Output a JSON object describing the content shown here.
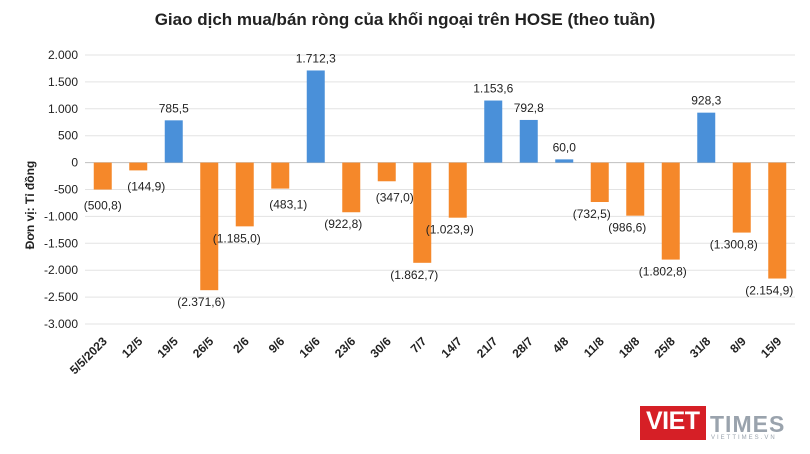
{
  "colors": {
    "positive": "#4a90d9",
    "negative": "#f5882a",
    "grid": "#e3e3e3",
    "axis": "#bfbfbf",
    "text": "#222222",
    "brand": "#d61f26"
  },
  "chart_data": {
    "type": "bar",
    "title": "Giao dịch mua/bán ròng của khối ngoại trên HOSE (theo tuần)",
    "ylabel": "Đơn vị: Tỉ đồng",
    "xlabel": "",
    "ylim": [
      -3000,
      2000
    ],
    "yticks": [
      2000,
      1500,
      1000,
      500,
      0,
      -500,
      -1000,
      -1500,
      -2000,
      -2500,
      -3000
    ],
    "ytick_labels": [
      "2.000",
      "1.500",
      "1.000",
      "500",
      "0",
      "-500",
      "-1.000",
      "-1.500",
      "-2.000",
      "-2.500",
      "-3.000"
    ],
    "grid": true,
    "legend": "none",
    "categories": [
      "5/5/2023",
      "12/5",
      "19/5",
      "26/5",
      "2/6",
      "9/6",
      "16/6",
      "23/6",
      "30/6",
      "7/7",
      "14/7",
      "21/7",
      "28/7",
      "4/8",
      "11/8",
      "18/8",
      "25/8",
      "31/8",
      "8/9",
      "15/9"
    ],
    "values": [
      -500.8,
      -144.9,
      785.5,
      -2371.6,
      -1185.0,
      -483.1,
      1712.3,
      -922.8,
      -347.0,
      -1862.7,
      -1023.9,
      1153.6,
      792.8,
      60.0,
      -732.5,
      -986.6,
      -1802.8,
      928.3,
      -1300.8,
      -2154.9
    ],
    "data_labels": [
      "(500,8)",
      "(144,9)",
      "785,5",
      "(2.371,6)",
      "(1.185,0)",
      "(483,1)",
      "1.712,3",
      "(922,8)",
      "(347,0)",
      "(1.862,7)",
      "(1.023,9)",
      "1.153,6",
      "792,8",
      "60,0",
      "(732,5)",
      "(986,6)",
      "(1.802,8)",
      "928,3",
      "(1.300,8)",
      "(2.154,9)"
    ]
  },
  "logo": {
    "word1": "VIET",
    "word2": "TIMES",
    "tagline": "VIETTIMES.VN"
  }
}
